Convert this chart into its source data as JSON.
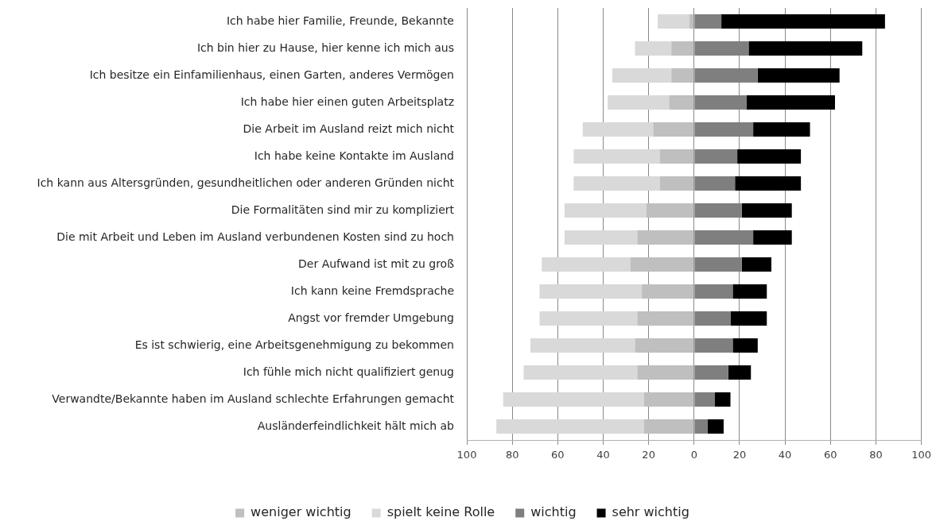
{
  "chart_data": {
    "type": "bar",
    "orientation": "horizontal",
    "stacked": true,
    "categories": [
      "Ich habe hier Familie, Freunde, Bekannte",
      "Ich bin hier zu Hause, hier kenne ich mich aus",
      "Ich besitze ein Einfamilienhaus, einen Garten, anderes Vermögen",
      "Ich habe hier einen guten Arbeitsplatz",
      "Die Arbeit im Ausland reizt mich nicht",
      "Ich habe keine Kontakte im Ausland",
      "Ich kann aus Altersgründen, gesundheitlichen oder anderen Gründen nicht",
      "Die Formalitäten sind mir zu kompliziert",
      "Die mit Arbeit und Leben im Ausland verbundenen Kosten sind zu hoch",
      "Der Aufwand ist mit zu groß",
      "Ich kann keine Fremdsprache",
      "Angst vor fremder Umgebung",
      "Es ist schwierig, eine Arbeitsgenehmigung zu bekommen",
      "Ich fühle mich nicht qualifiziert genug",
      "Verwandte/Bekannte haben im Ausland schlechte Erfahrungen gemacht",
      "Ausländerfeindlichkeit hält mich ab"
    ],
    "series": [
      {
        "name": "weniger wichtig",
        "color": "#bfbfbf",
        "values": [
          -2,
          -10,
          -10,
          -11,
          -18,
          -15,
          -15,
          -21,
          -25,
          -28,
          -23,
          -25,
          -26,
          -25,
          -22,
          -22
        ]
      },
      {
        "name": "spielt keine Rolle",
        "color": "#d9d9d9",
        "values": [
          -14,
          -16,
          -26,
          -27,
          -31,
          -38,
          -38,
          -36,
          -32,
          -39,
          -45,
          -43,
          -46,
          -50,
          -62,
          -65
        ]
      },
      {
        "name": "wichtig",
        "color": "#7f7f7f",
        "values": [
          12,
          24,
          28,
          23,
          26,
          19,
          18,
          21,
          26,
          21,
          17,
          16,
          17,
          15,
          9,
          6
        ]
      },
      {
        "name": "sehr wichtig",
        "color": "#000000",
        "values": [
          72,
          50,
          36,
          39,
          25,
          28,
          29,
          22,
          17,
          13,
          15,
          16,
          11,
          10,
          7,
          7
        ]
      }
    ],
    "xlim": [
      -100,
      100
    ],
    "xticks": [
      {
        "value": -100,
        "label": "100"
      },
      {
        "value": -80,
        "label": "80"
      },
      {
        "value": -60,
        "label": "60"
      },
      {
        "value": -40,
        "label": "40"
      },
      {
        "value": -20,
        "label": "20"
      },
      0,
      20,
      40,
      60,
      80,
      100
    ],
    "grid": "x",
    "legend": "bottom"
  }
}
